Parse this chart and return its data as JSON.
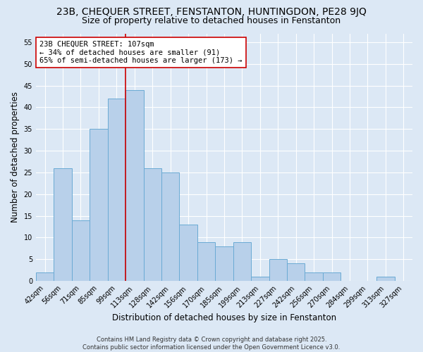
{
  "title": "23B, CHEQUER STREET, FENSTANTON, HUNTINGDON, PE28 9JQ",
  "subtitle": "Size of property relative to detached houses in Fenstanton",
  "xlabel": "Distribution of detached houses by size in Fenstanton",
  "ylabel": "Number of detached properties",
  "footer_line1": "Contains HM Land Registry data © Crown copyright and database right 2025.",
  "footer_line2": "Contains public sector information licensed under the Open Government Licence v3.0.",
  "bar_labels": [
    "42sqm",
    "56sqm",
    "71sqm",
    "85sqm",
    "99sqm",
    "113sqm",
    "128sqm",
    "142sqm",
    "156sqm",
    "170sqm",
    "185sqm",
    "199sqm",
    "213sqm",
    "227sqm",
    "242sqm",
    "256sqm",
    "270sqm",
    "284sqm",
    "299sqm",
    "313sqm",
    "327sqm"
  ],
  "bar_values": [
    2,
    26,
    14,
    35,
    42,
    44,
    26,
    25,
    13,
    9,
    8,
    9,
    1,
    5,
    4,
    2,
    2,
    0,
    0,
    1,
    0
  ],
  "bar_color": "#b8d0ea",
  "bar_edge_color": "#6aaad4",
  "annotation_line1": "23B CHEQUER STREET: 107sqm",
  "annotation_line2": "← 34% of detached houses are smaller (91)",
  "annotation_line3": "65% of semi-detached houses are larger (173) →",
  "vline_x_index": 4.5,
  "vline_color": "#cc0000",
  "annotation_box_facecolor": "#ffffff",
  "annotation_box_edgecolor": "#cc0000",
  "ylim": [
    0,
    57
  ],
  "yticks": [
    0,
    5,
    10,
    15,
    20,
    25,
    30,
    35,
    40,
    45,
    50,
    55
  ],
  "background_color": "#dce8f5",
  "plot_background_color": "#dce8f5",
  "grid_color": "#ffffff",
  "title_fontsize": 10,
  "subtitle_fontsize": 9,
  "tick_fontsize": 7,
  "ylabel_fontsize": 8.5,
  "xlabel_fontsize": 8.5,
  "annotation_fontsize": 7.5,
  "footer_fontsize": 6
}
